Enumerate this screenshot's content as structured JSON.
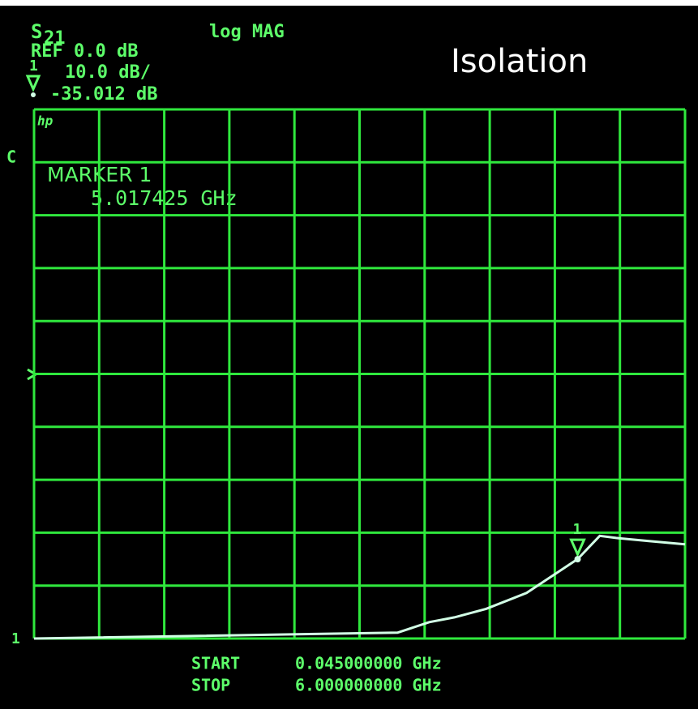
{
  "chart_data": {
    "type": "line",
    "title": "Isolation",
    "param": "S",
    "param_sub": "21",
    "format": "log MAG",
    "ref": "REF 0.0 dB",
    "channel_marker": "1",
    "scale": "10.0 dB/",
    "brand": "hp",
    "cal": "C",
    "marker_title": "MARKER 1",
    "marker": {
      "value": -35.012,
      "label": "-35.012 dB",
      "x": 5.017425,
      "x_label": "5.017425 GHz",
      "name": "1"
    },
    "channel": "1",
    "start_label": "START",
    "start": "0.045000000 GHz",
    "stop_label": "STOP",
    "stop": "6.000000000 GHz",
    "xlim": [
      0.045,
      6
    ],
    "ylim": [
      -50,
      50
    ],
    "x": [
      0.045,
      3.37,
      3.66,
      3.89,
      4.18,
      4.55,
      5.017425,
      5.22,
      5.37,
      5.67,
      6.0
    ],
    "values": [
      -50,
      -48.9,
      -46.9,
      -46,
      -44.4,
      -41.4,
      -35.0,
      -30.6,
      -31,
      -31.6,
      -32.2
    ],
    "color": "#d2ffe6"
  }
}
